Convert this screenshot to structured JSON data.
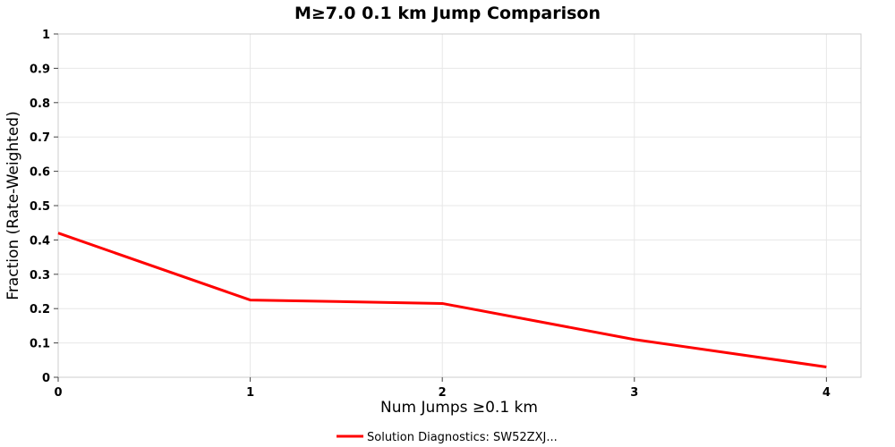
{
  "chart": {
    "title": "M≥7.0 0.1 km Jump Comparison",
    "xlabel": "Num Jumps ≥0.1 km",
    "ylabel": "Fraction (Rate-Weighted)"
  },
  "chart_data": {
    "type": "line",
    "title": "M≥7.0 0.1 km Jump Comparison",
    "xlabel": "Num Jumps ≥0.1 km",
    "ylabel": "Fraction (Rate-Weighted)",
    "x": [
      0,
      1,
      2,
      3,
      4
    ],
    "series": [
      {
        "name": "Solution Diagnostics: SW52ZXJ...",
        "color": "#ff0000",
        "values": [
          0.42,
          0.225,
          0.215,
          0.11,
          0.03
        ]
      }
    ],
    "xlim": [
      0,
      4.18
    ],
    "ylim": [
      0,
      1
    ],
    "xticks": [
      0,
      1,
      2,
      3,
      4
    ],
    "yticks": [
      0,
      0.1,
      0.2,
      0.3,
      0.4,
      0.5,
      0.6,
      0.7,
      0.8,
      0.9,
      1
    ],
    "grid": true,
    "legend_position": "bottom"
  },
  "colors": {
    "line": "#ff0000",
    "grid": "#e7e7e7",
    "plot_border": "#cccccc",
    "tick": "#444444",
    "text": "#000000",
    "background": "#ffffff"
  }
}
